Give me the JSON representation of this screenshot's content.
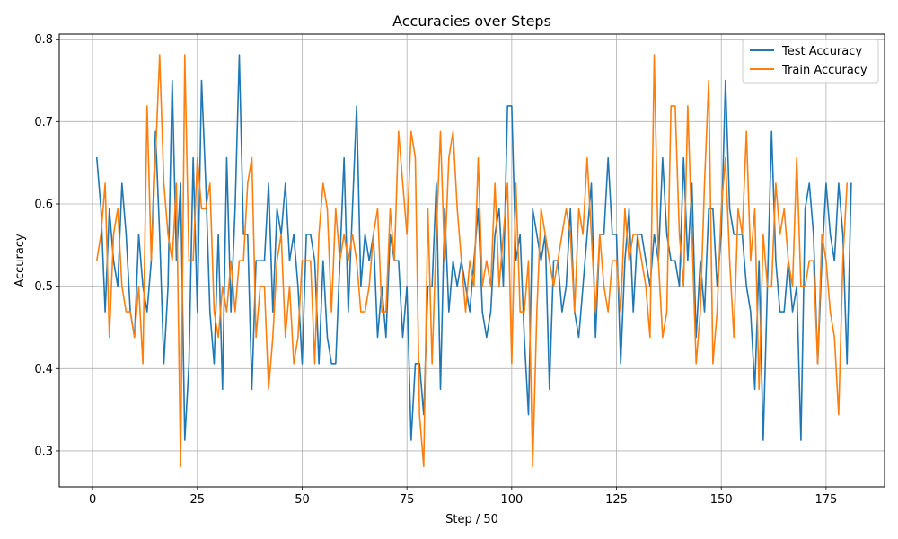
{
  "chart_data": {
    "type": "line",
    "title": "Accuracies over Steps",
    "xlabel": "Step / 50",
    "ylabel": "Accuracy",
    "xlim": [
      -7.95,
      188.95
    ],
    "ylim": [
      0.2563,
      0.8062
    ],
    "xticks": [
      0,
      25,
      50,
      75,
      100,
      125,
      150,
      175
    ],
    "yticks": [
      0.3,
      0.4,
      0.5,
      0.6,
      0.7,
      0.8
    ],
    "ytick_labels": [
      "0.3",
      "0.4",
      "0.5",
      "0.6",
      "0.7",
      "0.8"
    ],
    "grid": true,
    "legend_position": "top-right",
    "x_start": 1,
    "series": [
      {
        "name": "Test Accuracy",
        "color": "#1f77b4",
        "values": [
          0.656,
          0.594,
          0.469,
          0.594,
          0.531,
          0.5,
          0.625,
          0.563,
          0.469,
          0.438,
          0.563,
          0.5,
          0.469,
          0.531,
          0.688,
          0.563,
          0.406,
          0.5,
          0.75,
          0.531,
          0.625,
          0.313,
          0.406,
          0.656,
          0.469,
          0.75,
          0.625,
          0.469,
          0.406,
          0.563,
          0.375,
          0.656,
          0.469,
          0.594,
          0.781,
          0.563,
          0.563,
          0.375,
          0.531,
          0.531,
          0.531,
          0.625,
          0.469,
          0.594,
          0.563,
          0.625,
          0.531,
          0.563,
          0.5,
          0.406,
          0.563,
          0.563,
          0.531,
          0.406,
          0.531,
          0.438,
          0.406,
          0.406,
          0.531,
          0.656,
          0.469,
          0.594,
          0.719,
          0.5,
          0.563,
          0.531,
          0.563,
          0.438,
          0.5,
          0.438,
          0.563,
          0.531,
          0.531,
          0.438,
          0.5,
          0.313,
          0.406,
          0.406,
          0.344,
          0.5,
          0.5,
          0.625,
          0.375,
          0.594,
          0.469,
          0.531,
          0.5,
          0.531,
          0.5,
          0.469,
          0.531,
          0.594,
          0.469,
          0.438,
          0.469,
          0.563,
          0.594,
          0.5,
          0.719,
          0.719,
          0.531,
          0.563,
          0.438,
          0.344,
          0.594,
          0.563,
          0.531,
          0.563,
          0.375,
          0.531,
          0.531,
          0.469,
          0.5,
          0.594,
          0.469,
          0.438,
          0.5,
          0.563,
          0.625,
          0.438,
          0.563,
          0.563,
          0.656,
          0.563,
          0.563,
          0.406,
          0.531,
          0.594,
          0.469,
          0.563,
          0.563,
          0.531,
          0.5,
          0.563,
          0.531,
          0.656,
          0.563,
          0.531,
          0.531,
          0.5,
          0.656,
          0.531,
          0.625,
          0.438,
          0.531,
          0.469,
          0.594,
          0.594,
          0.5,
          0.563,
          0.75,
          0.594,
          0.563,
          0.563,
          0.563,
          0.5,
          0.469,
          0.375,
          0.531,
          0.313,
          0.5,
          0.688,
          0.531,
          0.469,
          0.469,
          0.531,
          0.469,
          0.5,
          0.313,
          0.594,
          0.625,
          0.563,
          0.406,
          0.531,
          0.625,
          0.563,
          0.531,
          0.625,
          0.563,
          0.406,
          0.625
        ]
      },
      {
        "name": "Train Accuracy",
        "color": "#ff7f0e",
        "values": [
          0.531,
          0.563,
          0.625,
          0.438,
          0.563,
          0.594,
          0.5,
          0.469,
          0.469,
          0.438,
          0.5,
          0.406,
          0.719,
          0.531,
          0.656,
          0.781,
          0.625,
          0.563,
          0.531,
          0.625,
          0.281,
          0.781,
          0.531,
          0.531,
          0.656,
          0.594,
          0.594,
          0.625,
          0.469,
          0.438,
          0.5,
          0.469,
          0.531,
          0.469,
          0.531,
          0.531,
          0.625,
          0.656,
          0.438,
          0.5,
          0.5,
          0.375,
          0.438,
          0.531,
          0.563,
          0.438,
          0.5,
          0.406,
          0.438,
          0.531,
          0.531,
          0.531,
          0.406,
          0.563,
          0.625,
          0.594,
          0.469,
          0.594,
          0.531,
          0.563,
          0.531,
          0.563,
          0.531,
          0.469,
          0.469,
          0.5,
          0.563,
          0.594,
          0.469,
          0.469,
          0.594,
          0.531,
          0.688,
          0.625,
          0.563,
          0.688,
          0.656,
          0.344,
          0.281,
          0.594,
          0.406,
          0.563,
          0.688,
          0.531,
          0.656,
          0.688,
          0.594,
          0.531,
          0.469,
          0.531,
          0.5,
          0.656,
          0.5,
          0.531,
          0.5,
          0.625,
          0.5,
          0.563,
          0.625,
          0.406,
          0.625,
          0.469,
          0.469,
          0.531,
          0.281,
          0.469,
          0.594,
          0.563,
          0.531,
          0.5,
          0.531,
          0.563,
          0.594,
          0.563,
          0.469,
          0.594,
          0.563,
          0.656,
          0.563,
          0.469,
          0.563,
          0.5,
          0.469,
          0.531,
          0.531,
          0.469,
          0.594,
          0.531,
          0.563,
          0.563,
          0.531,
          0.5,
          0.438,
          0.781,
          0.531,
          0.438,
          0.469,
          0.719,
          0.719,
          0.563,
          0.5,
          0.719,
          0.563,
          0.406,
          0.469,
          0.625,
          0.75,
          0.406,
          0.469,
          0.594,
          0.656,
          0.531,
          0.438,
          0.594,
          0.563,
          0.688,
          0.531,
          0.594,
          0.375,
          0.563,
          0.5,
          0.5,
          0.625,
          0.563,
          0.594,
          0.531,
          0.5,
          0.656,
          0.5,
          0.5,
          0.531,
          0.531,
          0.406,
          0.563,
          0.531,
          0.469,
          0.438,
          0.344,
          0.531,
          0.625
        ]
      }
    ]
  }
}
